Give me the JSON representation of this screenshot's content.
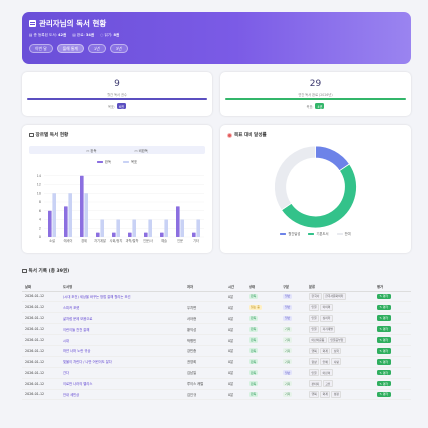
{
  "header": {
    "title": "관리자님의 독서 현황",
    "stats": [
      {
        "label": "총 등록된 도서:",
        "value": "42권"
      },
      {
        "label": "완료:",
        "value": "34권"
      },
      {
        "label": "읽기:",
        "value": "8권"
      }
    ],
    "buttons": [
      "이번 달",
      "올해 통계",
      "1년",
      "3년"
    ]
  },
  "cards": [
    {
      "number": "9",
      "label": "월간 독서 권수",
      "goal_label": "목표:",
      "goal_value": "6권",
      "progress": 1.0,
      "color": "#5b4fc0"
    },
    {
      "number": "29",
      "label": "연간 독서 완료 (2026년)",
      "goal_label": "목표:",
      "goal_value": "4권",
      "progress": 1.0,
      "color": "#33b66a"
    }
  ],
  "genre_chart": {
    "title": "장르별 독서 현황",
    "toggle": [
      "완독",
      "비완독"
    ],
    "chart_data": {
      "type": "bar",
      "categories": [
        "소설",
        "에세이",
        "경제",
        "자기계발",
        "사회/정치",
        "과학/철학",
        "인문/사",
        "예술",
        "인문",
        "기타"
      ],
      "series": [
        {
          "name": "완독",
          "values": [
            6,
            7,
            14,
            1,
            1,
            1,
            1,
            1,
            7,
            1
          ],
          "color": "#8b6fe0"
        },
        {
          "name": "목표",
          "values": [
            10,
            10,
            10,
            4,
            4,
            4,
            4,
            4,
            4,
            4
          ],
          "color": "#c9d2f5"
        }
      ],
      "legend": [
        "완독",
        "목표"
      ],
      "ylim": [
        0,
        16
      ],
      "yticks": [
        "0",
        "2",
        "4",
        "6",
        "8",
        "10",
        "12",
        "14"
      ]
    }
  },
  "goal_chart": {
    "title": "목표 대비 달성률",
    "chart_data": {
      "type": "pie",
      "labels": [
        "월간달성",
        "기본도서",
        "잔여"
      ],
      "values": [
        9,
        29,
        20
      ],
      "colors": [
        "#6d83e8",
        "#33c28a",
        "#e9ebf0"
      ]
    }
  },
  "table": {
    "title": "독서 기록 (총 39권)",
    "columns": [
      "날짜",
      "도서명",
      "저자",
      "시간",
      "상태",
      "구분",
      "분류",
      "평가"
    ],
    "rows": [
      {
        "date": "2026-01-12",
        "title": "(시대 조건) 세상을 바꾸는 방법 잘해 월리는 조선",
        "author": "",
        "time": "0분",
        "status": "완독",
        "kind": "일반",
        "tags": [
          "한국사",
          "한국사문화의학"
        ],
        "action": "평가"
      },
      {
        "date": "2026-01-12",
        "title": "스피커 포켓",
        "author": "우치면",
        "time": "0분",
        "status": "읽는 중",
        "kind": "일반",
        "tags": [
          "인물",
          "이이의"
        ],
        "action": "평가"
      },
      {
        "date": "2026-01-12",
        "title": "삶처럼 문제 모음으로",
        "author": "서아현",
        "time": "0분",
        "status": "완독",
        "kind": "일반",
        "tags": [
          "인물",
          "심리학"
        ],
        "action": "평가"
      },
      {
        "date": "2026-01-12",
        "title": "이런이들 천천 잘해",
        "author": "황익성",
        "time": "0분",
        "status": "완독",
        "kind": "기획",
        "tags": [
          "인물",
          "자기계발"
        ],
        "action": "평가"
      },
      {
        "date": "2026-01-12",
        "title": "시대",
        "author": "박병민",
        "time": "0분",
        "status": "완독",
        "kind": "기획",
        "tags": [
          "어린이운동",
          "인물공부합"
        ],
        "action": "평가"
      },
      {
        "date": "2026-01-12",
        "title": "하얀 너머 노란 귀상",
        "author": "강민종",
        "time": "0분",
        "status": "완독",
        "kind": "기획",
        "tags": [
          "행복",
          "외계",
          "심학"
        ],
        "action": "평가"
      },
      {
        "date": "2026-01-12",
        "title": "빛물이 차린다 / 나만 어린이도 잘다",
        "author": "권영희",
        "time": "0분",
        "status": "완독",
        "kind": "기획",
        "tags": [
          "항상",
          "인예",
          "사랑"
        ],
        "action": "평가"
      },
      {
        "date": "2026-01-12",
        "title": "간다",
        "author": "김남일",
        "time": "0분",
        "status": "완독",
        "kind": "일반",
        "tags": [
          "인물",
          "어린이"
        ],
        "action": "평가"
      },
      {
        "date": "2026-01-12",
        "title": "이로만 나라의 멜리스",
        "author": "루이스 캐럴",
        "time": "0분",
        "status": "완독",
        "kind": "기획",
        "tags": [
          "판타지",
          "고전"
        ],
        "action": "평가"
      },
      {
        "date": "2026-01-12",
        "title": "안내 세빈상",
        "author": "김인규",
        "time": "0분",
        "status": "완독",
        "kind": "기획",
        "tags": [
          "행복",
          "외계",
          "성장"
        ],
        "action": "평가"
      }
    ]
  }
}
